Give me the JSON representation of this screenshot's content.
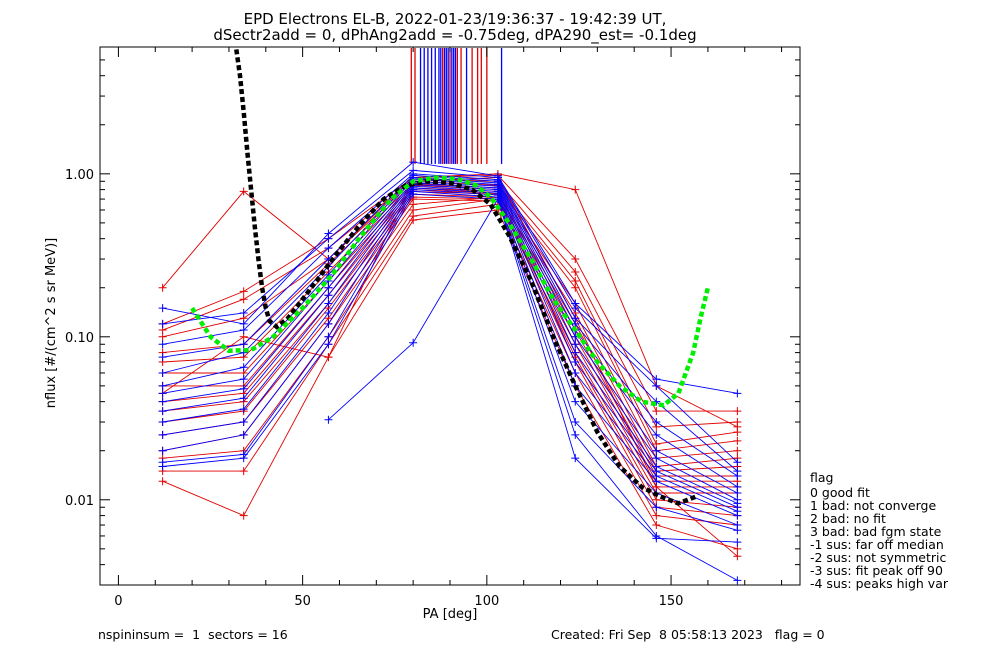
{
  "chart_data": {
    "type": "line",
    "title_lines": [
      "EPD Electrons EL-B, 2022-01-23/19:36:37 - 19:42:39 UT,",
      "dSectr2add = 0, dPhAng2add = -0.75deg, dPA290_est=  -0.1deg"
    ],
    "xlabel": "PA [deg]",
    "ylabel": "nflux [#/(cm^2 s sr MeV)]",
    "xlim": [
      -5,
      185
    ],
    "ylim": [
      0.003,
      6
    ],
    "y_scale": "log",
    "x_ticks": [
      0,
      50,
      100,
      150
    ],
    "x_tick_labels": [
      "0",
      "50",
      "100",
      "150"
    ],
    "y_ticks": [
      0.01,
      0.1,
      1.0
    ],
    "y_tick_labels": [
      "0.01",
      "0.10",
      "1.00"
    ],
    "pa_bins": [
      12,
      34,
      57,
      80,
      103,
      124,
      146,
      168
    ],
    "colors": {
      "red": "#e00000",
      "blue": "#0000ff",
      "green": "#00ee00",
      "black": "#000000"
    },
    "fit_green": {
      "x": [
        20,
        25,
        30,
        36,
        42,
        50,
        58,
        66,
        74,
        80,
        86,
        92,
        97,
        101,
        106,
        112,
        118,
        124,
        130,
        136,
        142,
        148,
        152,
        156,
        158,
        160
      ],
      "y": [
        0.15,
        0.1,
        0.082,
        0.083,
        0.1,
        0.15,
        0.24,
        0.42,
        0.7,
        0.9,
        0.95,
        0.93,
        0.85,
        0.72,
        0.5,
        0.3,
        0.17,
        0.11,
        0.07,
        0.05,
        0.04,
        0.038,
        0.045,
        0.08,
        0.13,
        0.2
      ]
    },
    "fit_black": {
      "x": [
        32,
        33,
        34,
        35,
        36,
        37,
        38,
        39,
        40,
        41,
        43,
        46,
        50,
        55,
        60,
        66,
        72,
        78,
        84,
        90,
        96,
        101,
        106,
        112,
        118,
        124,
        130,
        136,
        142,
        147,
        152,
        157
      ],
      "y": [
        5.8,
        4.0,
        2.4,
        1.35,
        0.8,
        0.48,
        0.3,
        0.2,
        0.15,
        0.125,
        0.115,
        0.13,
        0.17,
        0.24,
        0.34,
        0.5,
        0.7,
        0.85,
        0.9,
        0.88,
        0.8,
        0.65,
        0.42,
        0.22,
        0.1,
        0.05,
        0.026,
        0.016,
        0.012,
        0.0105,
        0.0095,
        0.0105
      ]
    },
    "vertical_markers": {
      "red": [
        79.5,
        80.5,
        88,
        90,
        92,
        93,
        96,
        97.5,
        98.5,
        100
      ],
      "blue": [
        82,
        83,
        84,
        85,
        86,
        87,
        87.5,
        88.5,
        89,
        89.5,
        90.5,
        91,
        91.5,
        94.5,
        104
      ]
    },
    "series": [
      {
        "color": "red",
        "x": [
          12,
          34,
          57,
          80,
          103,
          124,
          146,
          168
        ],
        "y": [
          0.2,
          0.78,
          0.3,
          0.95,
          0.98,
          0.3,
          0.035,
          0.035
        ]
      },
      {
        "color": "red",
        "x": [
          12,
          34,
          57,
          80,
          103,
          124,
          146,
          168
        ],
        "y": [
          0.12,
          0.19,
          0.4,
          0.95,
          1.0,
          0.8,
          0.05,
          0.028
        ]
      },
      {
        "color": "red",
        "x": [
          12,
          34,
          57,
          80,
          103,
          124,
          146,
          168
        ],
        "y": [
          0.11,
          0.17,
          0.35,
          0.93,
          0.9,
          0.25,
          0.028,
          0.03
        ]
      },
      {
        "color": "red",
        "x": [
          12,
          34,
          57,
          80,
          103,
          124,
          146,
          168
        ],
        "y": [
          0.1,
          0.13,
          0.3,
          0.9,
          0.85,
          0.22,
          0.022,
          0.026
        ]
      },
      {
        "color": "red",
        "x": [
          12,
          34,
          57,
          80,
          103,
          124,
          146,
          168
        ],
        "y": [
          0.08,
          0.09,
          0.28,
          0.87,
          0.82,
          0.2,
          0.02,
          0.023
        ]
      },
      {
        "color": "red",
        "x": [
          12,
          34,
          57,
          80,
          103,
          124,
          146,
          168
        ],
        "y": [
          0.07,
          0.075,
          0.25,
          0.85,
          0.8,
          0.16,
          0.018,
          0.02
        ]
      },
      {
        "color": "red",
        "x": [
          12,
          34,
          57,
          80,
          103,
          124,
          146,
          168
        ],
        "y": [
          0.06,
          0.06,
          0.22,
          0.82,
          0.78,
          0.14,
          0.016,
          0.018
        ]
      },
      {
        "color": "red",
        "x": [
          12,
          34,
          57,
          80,
          103,
          124,
          146,
          168
        ],
        "y": [
          0.05,
          0.05,
          0.2,
          0.8,
          0.76,
          0.12,
          0.015,
          0.016
        ]
      },
      {
        "color": "red",
        "x": [
          12,
          34,
          57,
          80,
          103,
          124,
          146,
          168
        ],
        "y": [
          0.04,
          0.045,
          0.18,
          0.78,
          0.75,
          0.11,
          0.014,
          0.014
        ]
      },
      {
        "color": "red",
        "x": [
          12,
          34,
          57,
          80,
          103,
          124,
          146,
          168
        ],
        "y": [
          0.035,
          0.04,
          0.16,
          0.75,
          0.72,
          0.1,
          0.013,
          0.013
        ]
      },
      {
        "color": "red",
        "x": [
          12,
          34,
          57,
          80,
          103,
          124,
          146,
          168
        ],
        "y": [
          0.03,
          0.035,
          0.15,
          0.72,
          0.7,
          0.09,
          0.012,
          0.012
        ]
      },
      {
        "color": "red",
        "x": [
          12,
          34,
          57,
          80,
          103,
          124,
          146,
          168
        ],
        "y": [
          0.025,
          0.03,
          0.13,
          0.7,
          0.68,
          0.08,
          0.011,
          0.011
        ]
      },
      {
        "color": "red",
        "x": [
          12,
          34,
          57,
          80,
          103,
          124,
          146,
          168
        ],
        "y": [
          0.02,
          0.025,
          0.12,
          0.65,
          0.72,
          0.075,
          0.01,
          0.009
        ]
      },
      {
        "color": "red",
        "x": [
          12,
          34,
          57,
          80,
          103,
          124,
          146,
          168
        ],
        "y": [
          0.018,
          0.02,
          0.1,
          0.6,
          0.7,
          0.07,
          0.009,
          0.008
        ]
      },
      {
        "color": "red",
        "x": [
          12,
          34,
          57,
          80,
          103,
          124,
          146,
          168
        ],
        "y": [
          0.015,
          0.015,
          0.09,
          0.55,
          0.65,
          0.06,
          0.008,
          0.007
        ]
      },
      {
        "color": "red",
        "x": [
          12,
          34,
          57,
          80,
          103,
          124,
          146,
          168
        ],
        "y": [
          0.013,
          0.008,
          0.075,
          0.52,
          0.6,
          0.05,
          0.007,
          0.005
        ]
      },
      {
        "color": "red",
        "x": [
          12,
          34,
          57,
          80,
          103,
          124,
          146,
          168
        ],
        "y": [
          0.045,
          0.1,
          0.075,
          0.9,
          0.95,
          0.13,
          0.012,
          0.0045
        ]
      },
      {
        "color": "blue",
        "x": [
          12,
          34,
          57,
          80,
          103,
          124,
          146,
          168
        ],
        "y": [
          0.15,
          0.12,
          0.43,
          1.18,
          0.97,
          0.16,
          0.055,
          0.045
        ]
      },
      {
        "color": "blue",
        "x": [
          12,
          34,
          57,
          80,
          103,
          124,
          146,
          168
        ],
        "y": [
          0.12,
          0.14,
          0.4,
          1.05,
          0.95,
          0.15,
          0.05,
          0.017
        ]
      },
      {
        "color": "blue",
        "x": [
          12,
          34,
          57,
          80,
          103,
          124,
          146,
          168
        ],
        "y": [
          0.09,
          0.11,
          0.35,
          1.0,
          0.92,
          0.13,
          0.04,
          0.015
        ]
      },
      {
        "color": "blue",
        "x": [
          12,
          34,
          57,
          80,
          103,
          124,
          146,
          168
        ],
        "y": [
          0.075,
          0.09,
          0.3,
          0.98,
          0.9,
          0.12,
          0.03,
          0.014
        ]
      },
      {
        "color": "blue",
        "x": [
          12,
          34,
          57,
          80,
          103,
          124,
          146,
          168
        ],
        "y": [
          0.06,
          0.08,
          0.27,
          0.95,
          0.88,
          0.11,
          0.025,
          0.012
        ]
      },
      {
        "color": "blue",
        "x": [
          12,
          34,
          57,
          80,
          103,
          124,
          146,
          168
        ],
        "y": [
          0.05,
          0.065,
          0.24,
          0.93,
          0.86,
          0.1,
          0.02,
          0.011
        ]
      },
      {
        "color": "blue",
        "x": [
          12,
          34,
          57,
          80,
          103,
          124,
          146,
          168
        ],
        "y": [
          0.045,
          0.055,
          0.22,
          0.9,
          0.84,
          0.09,
          0.018,
          0.01
        ]
      },
      {
        "color": "blue",
        "x": [
          12,
          34,
          57,
          80,
          103,
          124,
          146,
          168
        ],
        "y": [
          0.04,
          0.048,
          0.2,
          0.88,
          0.82,
          0.08,
          0.016,
          0.0095
        ]
      },
      {
        "color": "blue",
        "x": [
          12,
          34,
          57,
          80,
          103,
          124,
          146,
          168
        ],
        "y": [
          0.035,
          0.042,
          0.18,
          0.86,
          0.8,
          0.07,
          0.015,
          0.009
        ]
      },
      {
        "color": "blue",
        "x": [
          12,
          34,
          57,
          80,
          103,
          124,
          146,
          168
        ],
        "y": [
          0.03,
          0.036,
          0.16,
          0.84,
          0.78,
          0.06,
          0.014,
          0.0085
        ]
      },
      {
        "color": "blue",
        "x": [
          12,
          34,
          57,
          80,
          103,
          124,
          146,
          168
        ],
        "y": [
          0.025,
          0.03,
          0.14,
          0.82,
          0.76,
          0.05,
          0.013,
          0.008
        ]
      },
      {
        "color": "blue",
        "x": [
          12,
          34,
          57,
          80,
          103,
          124,
          146,
          168
        ],
        "y": [
          0.02,
          0.025,
          0.12,
          0.8,
          0.74,
          0.04,
          0.011,
          0.007
        ]
      },
      {
        "color": "blue",
        "x": [
          12,
          34,
          57,
          80,
          103,
          124,
          146,
          168
        ],
        "y": [
          0.017,
          0.019,
          0.1,
          0.78,
          0.72,
          0.03,
          0.009,
          0.0065
        ]
      },
      {
        "color": "blue",
        "x": [
          12,
          34,
          57,
          80,
          103,
          124,
          146,
          168
        ],
        "y": [
          0.016,
          0.018,
          0.09,
          0.75,
          0.7,
          0.018,
          0.0058,
          0.0055
        ]
      },
      {
        "color": "blue",
        "x": [
          57,
          80,
          103,
          124,
          146,
          168
        ],
        "y": [
          0.031,
          0.092,
          0.7,
          0.025,
          0.006,
          0.0032
        ]
      }
    ]
  },
  "flag_legend": {
    "title": "flag",
    "items": [
      " 0 good fit",
      " 1 bad: not converge",
      " 2 bad: no fit",
      " 3 bad: bad fgm state",
      "-1 sus: far off median",
      "-2 sus: not symmetric",
      "-3 sus: fit peak off 90",
      "-4 sus: peaks high var"
    ]
  },
  "footer": {
    "left": "nspininsum =  1  sectors = 16",
    "right": "Created: Fri Sep  8 05:58:13 2023   flag = 0"
  }
}
